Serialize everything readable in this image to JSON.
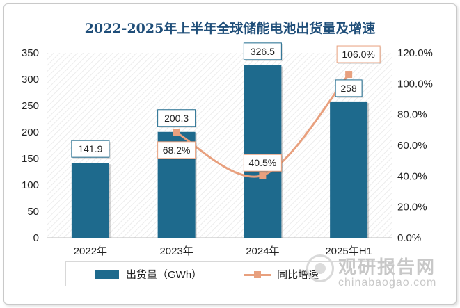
{
  "chart_data": {
    "type": "bar+line",
    "title": "2022-2025年上半年全球储能电池出货量及增速",
    "categories": [
      "2022年",
      "2023年",
      "2024年",
      "2025年H1"
    ],
    "series": [
      {
        "name": "出货量（GWh）",
        "type": "bar",
        "axis": "left",
        "values": [
          141.9,
          200.3,
          326.5,
          258
        ],
        "labels": [
          "141.9",
          "200.3",
          "326.5",
          "258"
        ],
        "color": "#1e6a8d"
      },
      {
        "name": "同比增速",
        "type": "line",
        "axis": "right",
        "values": [
          null,
          68.2,
          40.5,
          106.0
        ],
        "labels": [
          "",
          "68.2%",
          "40.5%",
          "106.0%"
        ],
        "color": "#e8a07e"
      }
    ],
    "y_left": {
      "min": 0,
      "max": 350,
      "step": 50,
      "ticks": [
        "0",
        "50",
        "100",
        "150",
        "200",
        "250",
        "300",
        "350"
      ]
    },
    "y_right": {
      "min": 0,
      "max": 120,
      "step": 20,
      "ticks": [
        "0.0%",
        "20.0%",
        "40.0%",
        "60.0%",
        "80.0%",
        "100.0%",
        "120.0%"
      ]
    },
    "legend_position": "bottom",
    "grid": false
  },
  "watermark": {
    "name_cn": "观研报告网",
    "domain": "chinabaogao.com"
  }
}
